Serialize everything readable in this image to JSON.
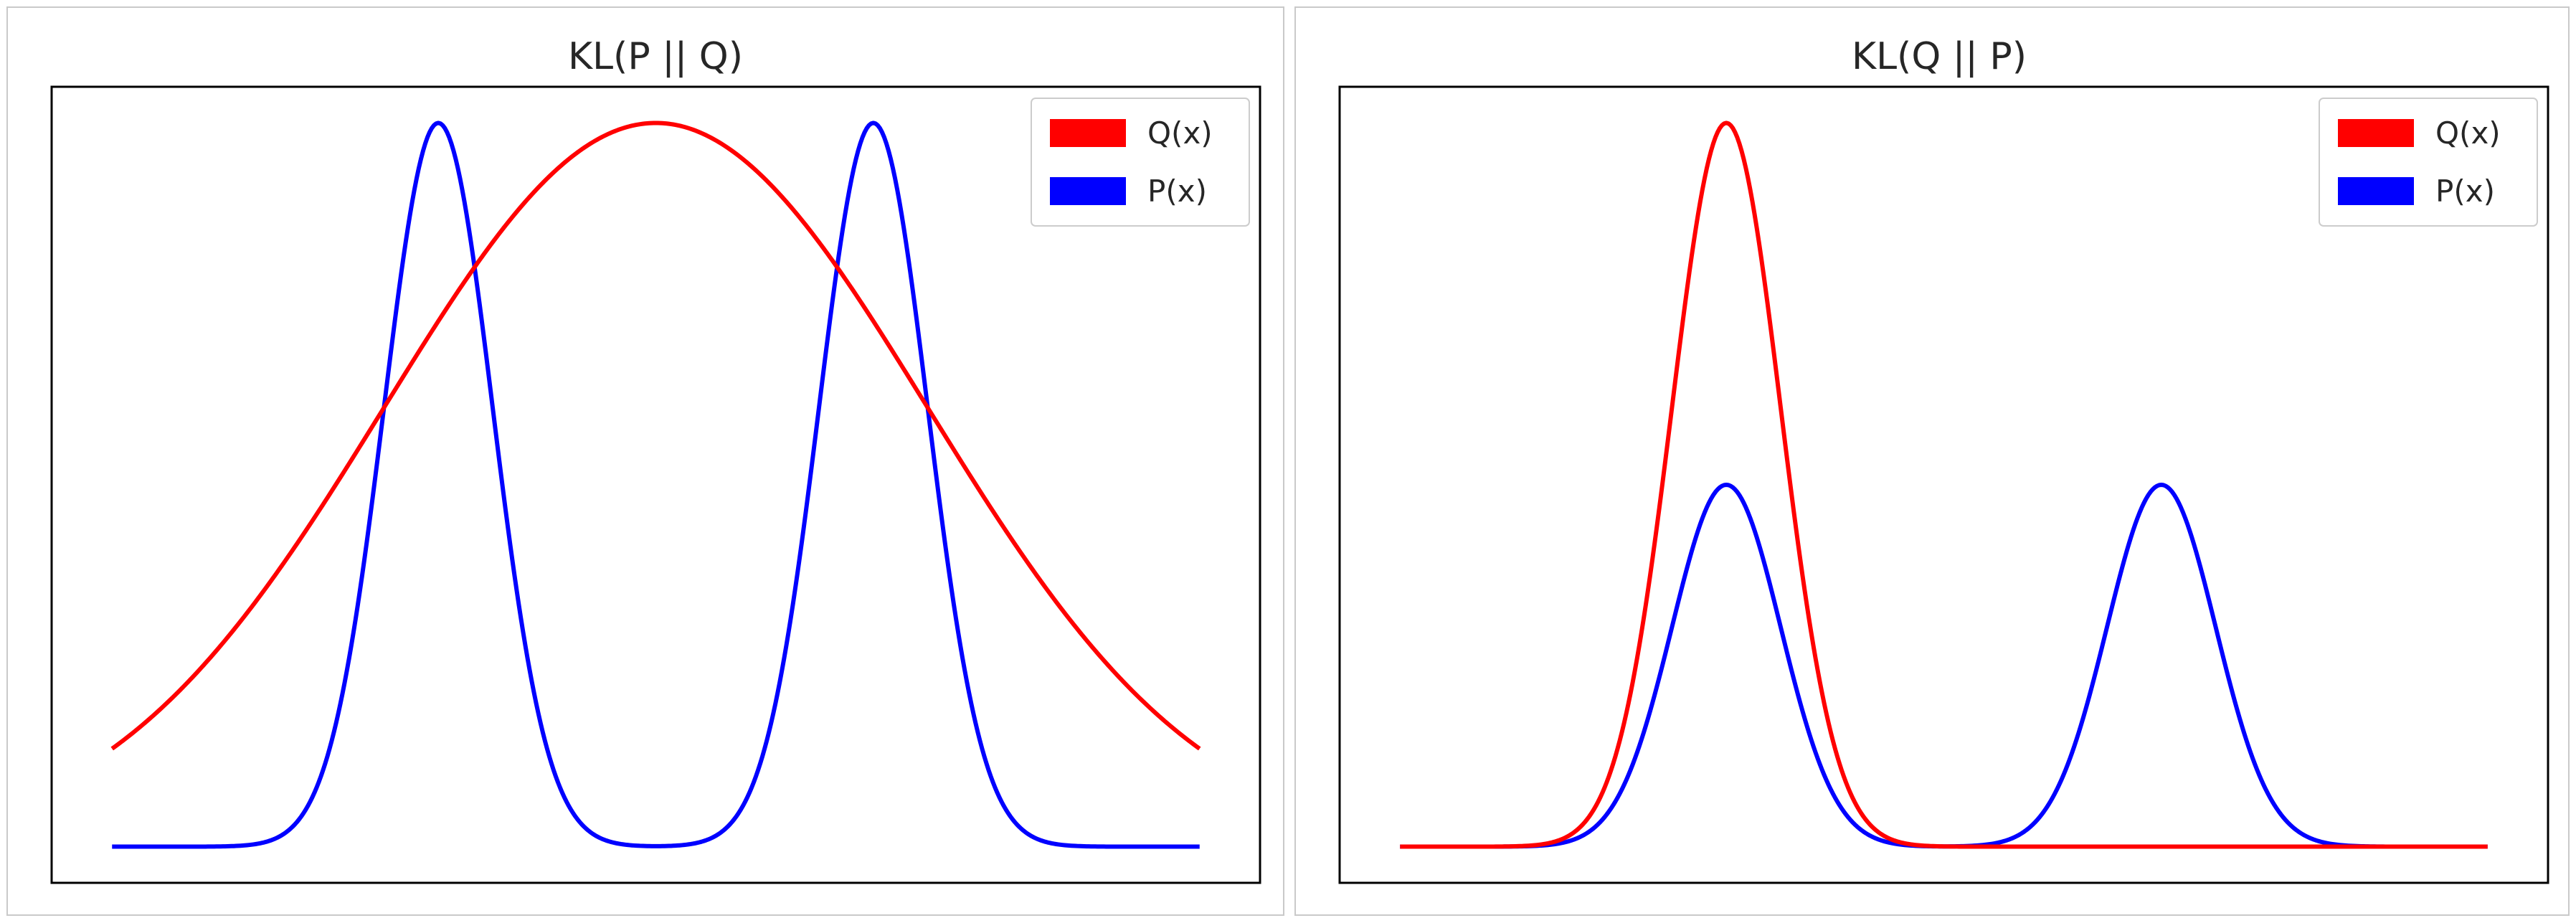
{
  "colors": {
    "q": "#ff0000",
    "p": "#0000ff",
    "axes": "#000000",
    "legend_border": "#cccccc"
  },
  "chart_data": [
    {
      "type": "line",
      "title": "KL(P || Q)",
      "xlabel": "",
      "ylabel": "",
      "legend": "top-right",
      "grid": false,
      "ticks": false,
      "series": [
        {
          "name": "Q(x)",
          "color": "#ff0000",
          "kind": "gaussian_mixture",
          "components": [
            {
              "weight": 1.0,
              "mean": 0.0,
              "sd": 2.5
            }
          ]
        },
        {
          "name": "P(x)",
          "color": "#0000ff",
          "kind": "gaussian_mixture",
          "components": [
            {
              "weight": 1.0,
              "mean": -2.0,
              "sd": 0.5
            },
            {
              "weight": 1.0,
              "mean": 2.0,
              "sd": 0.5
            }
          ]
        }
      ],
      "xlim": [
        -5,
        5
      ],
      "ylim": [
        -0.05,
        1.05
      ]
    },
    {
      "type": "line",
      "title": "KL(Q || P)",
      "xlabel": "",
      "ylabel": "",
      "legend": "top-right",
      "grid": false,
      "ticks": false,
      "series": [
        {
          "name": "Q(x)",
          "color": "#ff0000",
          "kind": "gaussian_mixture",
          "components": [
            {
              "weight": 1.0,
              "mean": -2.0,
              "sd": 0.5
            }
          ]
        },
        {
          "name": "P(x)",
          "color": "#0000ff",
          "kind": "gaussian_mixture",
          "components": [
            {
              "weight": 0.5,
              "mean": -2.0,
              "sd": 0.5
            },
            {
              "weight": 0.5,
              "mean": 2.0,
              "sd": 0.5
            }
          ]
        }
      ],
      "xlim": [
        -5,
        5
      ],
      "ylim": [
        -0.05,
        1.05
      ]
    }
  ]
}
